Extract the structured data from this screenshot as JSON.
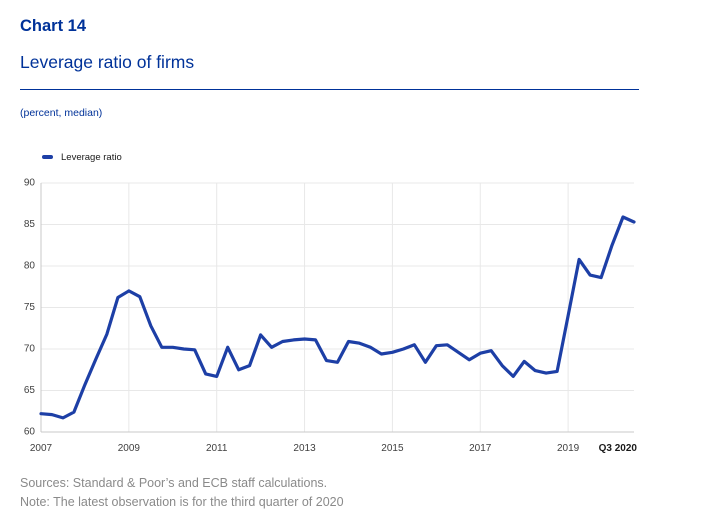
{
  "header": {
    "chart_label": "Chart 14",
    "title": "Leverage ratio of firms",
    "subtitle": "(percent, median)",
    "accent_color": "#003299"
  },
  "legend": {
    "items": [
      {
        "label": "Leverage ratio",
        "swatch": "dash-icon",
        "color": "#1d3fa6"
      }
    ]
  },
  "chart_data": {
    "type": "line",
    "title": "Leverage ratio of firms",
    "unit": "percent, median",
    "ylim": [
      60,
      90
    ],
    "y_ticks": [
      60,
      65,
      70,
      75,
      80,
      85,
      90
    ],
    "x_tick_labels": [
      "2007",
      "2009",
      "2011",
      "2013",
      "2015",
      "2017",
      "2019",
      "Q3 2020"
    ],
    "x_tick_indices": [
      0,
      8,
      16,
      24,
      32,
      40,
      48,
      54
    ],
    "grid": {
      "horizontal": true,
      "vertical": true,
      "color": "#e8e8e8"
    },
    "axis_color": "#c9c9c9",
    "tick_label_color": "#404040",
    "legend_position": "top-left",
    "series": [
      {
        "name": "Leverage ratio",
        "color": "#1d3fa6",
        "start": "2007Q1",
        "end": "2020Q3",
        "frequency": "quarterly",
        "values": [
          62.2,
          62.1,
          61.7,
          62.4,
          65.7,
          68.8,
          71.8,
          76.2,
          77.0,
          76.3,
          72.8,
          70.2,
          70.2,
          70.0,
          69.9,
          67.0,
          66.7,
          70.2,
          67.5,
          68.0,
          71.7,
          70.2,
          70.9,
          71.1,
          71.2,
          71.1,
          68.6,
          68.4,
          70.9,
          70.7,
          70.2,
          69.4,
          69.6,
          70.0,
          70.5,
          68.4,
          70.4,
          70.5,
          69.6,
          68.7,
          69.5,
          69.8,
          68.0,
          66.7,
          68.5,
          67.4,
          67.1,
          67.3,
          74.0,
          80.8,
          78.9,
          78.6,
          82.5,
          85.9,
          85.3
        ]
      }
    ]
  },
  "footer": {
    "lines": [
      "Sources: Standard & Poor’s and ECB staff calculations.",
      "Note: The latest observation is for the third quarter of 2020"
    ]
  }
}
